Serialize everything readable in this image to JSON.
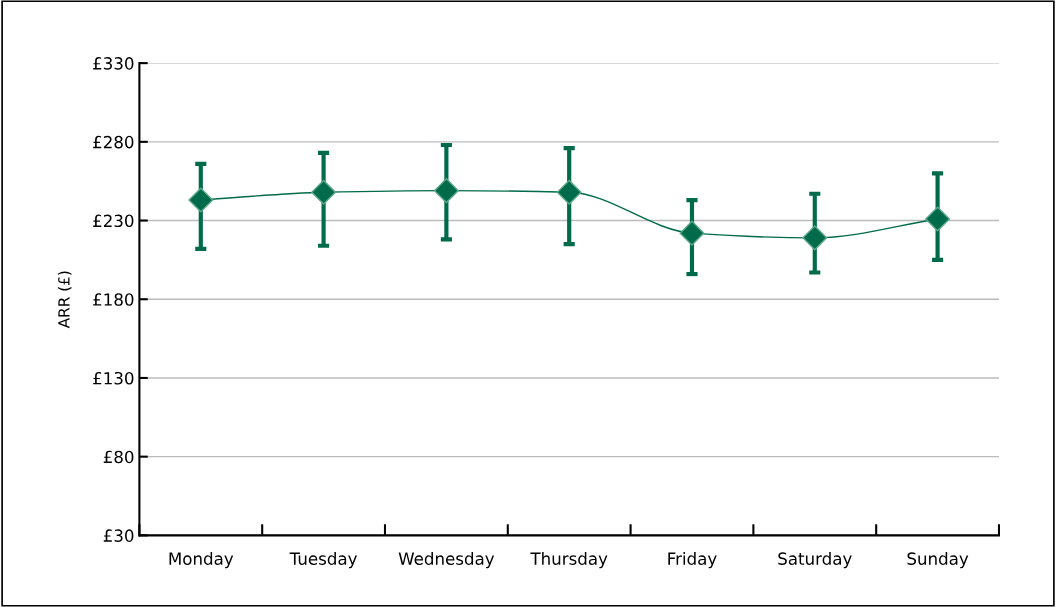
{
  "chart_data": {
    "type": "line",
    "ylabel": "ARR (£)",
    "categories": [
      "Monday",
      "Tuesday",
      "Wednesday",
      "Thursday",
      "Friday",
      "Saturday",
      "Sunday"
    ],
    "series": [
      {
        "color": "#006b4a",
        "values": [
          243,
          248,
          249,
          248,
          222,
          219,
          231
        ],
        "errors": [
          [
            212,
            266
          ],
          [
            214,
            273
          ],
          [
            218,
            278
          ],
          [
            215,
            276
          ],
          [
            196,
            243
          ],
          [
            197,
            247
          ],
          [
            205,
            260
          ]
        ]
      }
    ],
    "ylim": [
      30,
      330
    ],
    "yticks": [
      {
        "value": 30,
        "label": "£30"
      },
      {
        "value": 80,
        "label": "£80"
      },
      {
        "value": 130,
        "label": "£130"
      },
      {
        "value": 180,
        "label": "£180"
      },
      {
        "value": 230,
        "label": "£230"
      },
      {
        "value": 280,
        "label": "£280"
      },
      {
        "value": 330,
        "label": "£330"
      }
    ],
    "grid": "y",
    "marker": "diamond",
    "line_style": "solid"
  }
}
